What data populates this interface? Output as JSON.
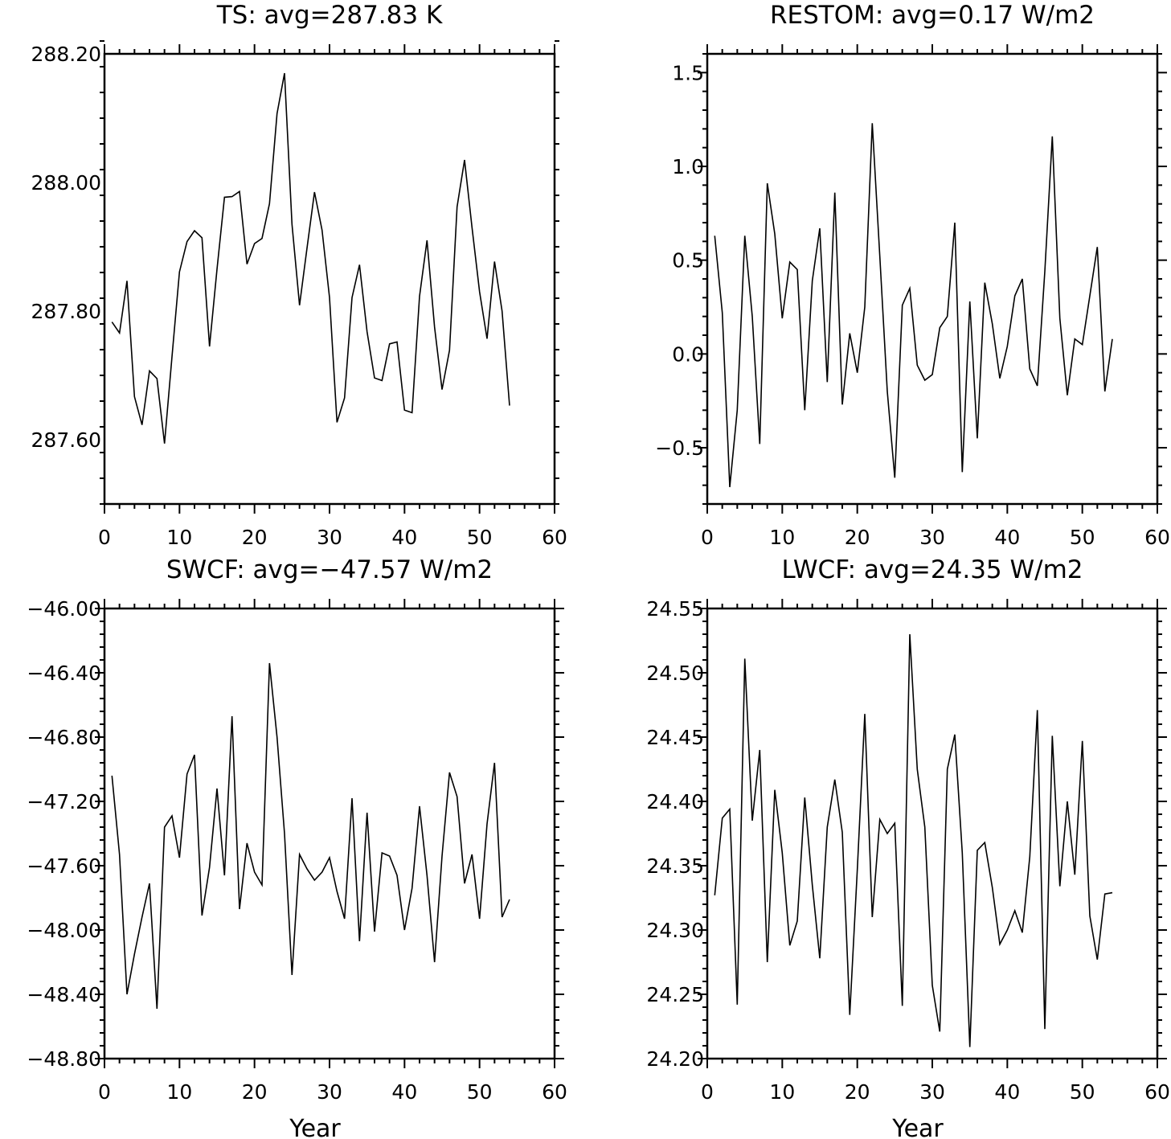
{
  "chart_data": [
    {
      "type": "line",
      "title": "TS: avg=287.83 K",
      "xlabel": "",
      "ylabel": "",
      "xlim": [
        0,
        60
      ],
      "ylim": [
        287.5,
        288.2
      ],
      "xticks": [
        "0",
        "10",
        "20",
        "30",
        "40",
        "50",
        "60"
      ],
      "yticks": [
        {
          "value": 287.6,
          "label": "287.60"
        },
        {
          "value": 287.8,
          "label": "287.80"
        },
        {
          "value": 288.0,
          "label": "288.00"
        },
        {
          "value": 288.2,
          "label": "288.20"
        }
      ],
      "x": [
        1,
        2,
        3,
        4,
        5,
        6,
        7,
        8,
        9,
        10,
        11,
        12,
        13,
        14,
        15,
        16,
        17,
        18,
        19,
        20,
        21,
        22,
        23,
        24,
        25,
        26,
        27,
        28,
        29,
        30,
        31,
        32,
        33,
        34,
        35,
        36,
        37,
        38,
        39,
        40,
        41,
        42,
        43,
        44,
        45,
        46,
        47,
        48,
        49,
        50,
        51,
        52,
        53,
        54
      ],
      "values": [
        287.783,
        287.766,
        287.847,
        287.667,
        287.623,
        287.707,
        287.695,
        287.594,
        287.729,
        287.861,
        287.908,
        287.925,
        287.914,
        287.745,
        287.865,
        287.977,
        287.978,
        287.986,
        287.873,
        287.905,
        287.913,
        287.967,
        288.107,
        288.17,
        287.935,
        287.809,
        287.898,
        287.985,
        287.926,
        287.821,
        287.627,
        287.665,
        287.821,
        287.872,
        287.768,
        287.696,
        287.692,
        287.749,
        287.752,
        287.646,
        287.642,
        287.823,
        287.91,
        287.775,
        287.678,
        287.739,
        287.962,
        288.035,
        287.93,
        287.83,
        287.757,
        287.877,
        287.8,
        287.653
      ]
    },
    {
      "type": "line",
      "title": "RESTOM: avg=0.17 W/m2",
      "xlabel": "",
      "ylabel": "",
      "xlim": [
        0,
        60
      ],
      "ylim": [
        -0.8,
        1.6
      ],
      "xticks": [
        "0",
        "10",
        "20",
        "30",
        "40",
        "50",
        "60"
      ],
      "yticks": [
        {
          "value": -0.5,
          "label": "−0.5"
        },
        {
          "value": 0.0,
          "label": "0.0"
        },
        {
          "value": 0.5,
          "label": "0.5"
        },
        {
          "value": 1.0,
          "label": "1.0"
        },
        {
          "value": 1.5,
          "label": "1.5"
        }
      ],
      "x": [
        1,
        2,
        3,
        4,
        5,
        6,
        7,
        8,
        9,
        10,
        11,
        12,
        13,
        14,
        15,
        16,
        17,
        18,
        19,
        20,
        21,
        22,
        23,
        24,
        25,
        26,
        27,
        28,
        29,
        30,
        31,
        32,
        33,
        34,
        35,
        36,
        37,
        38,
        39,
        40,
        41,
        42,
        43,
        44,
        45,
        46,
        47,
        48,
        49,
        50,
        51,
        52,
        53,
        54
      ],
      "values": [
        0.63,
        0.22,
        -0.71,
        -0.3,
        0.63,
        0.2,
        -0.48,
        0.91,
        0.64,
        0.19,
        0.49,
        0.45,
        -0.3,
        0.39,
        0.67,
        -0.15,
        0.86,
        -0.27,
        0.11,
        -0.1,
        0.25,
        1.23,
        0.52,
        -0.2,
        -0.66,
        0.26,
        0.35,
        -0.06,
        -0.14,
        -0.11,
        0.14,
        0.2,
        0.7,
        -0.63,
        0.28,
        -0.45,
        0.38,
        0.16,
        -0.13,
        0.04,
        0.31,
        0.4,
        -0.08,
        -0.17,
        0.44,
        1.16,
        0.19,
        -0.22,
        0.08,
        0.05,
        0.31,
        0.57,
        -0.2,
        0.08
      ]
    },
    {
      "type": "line",
      "title": "SWCF: avg=−47.57 W/m2",
      "xlabel": "Year",
      "ylabel": "",
      "xlim": [
        0,
        60
      ],
      "ylim": [
        -48.8,
        -46.0
      ],
      "xticks": [
        "0",
        "10",
        "20",
        "30",
        "40",
        "50",
        "60"
      ],
      "yticks": [
        {
          "value": -48.8,
          "label": "−48.80"
        },
        {
          "value": -48.4,
          "label": "−48.40"
        },
        {
          "value": -48.0,
          "label": "−48.00"
        },
        {
          "value": -47.6,
          "label": "−47.60"
        },
        {
          "value": -47.2,
          "label": "−47.20"
        },
        {
          "value": -46.8,
          "label": "−46.80"
        },
        {
          "value": -46.4,
          "label": "−46.40"
        },
        {
          "value": -46.0,
          "label": "−46.00"
        }
      ],
      "x": [
        1,
        2,
        3,
        4,
        5,
        6,
        7,
        8,
        9,
        10,
        11,
        12,
        13,
        14,
        15,
        16,
        17,
        18,
        19,
        20,
        21,
        22,
        23,
        24,
        25,
        26,
        27,
        28,
        29,
        30,
        31,
        32,
        33,
        34,
        35,
        36,
        37,
        38,
        39,
        40,
        41,
        42,
        43,
        44,
        45,
        46,
        47,
        48,
        49,
        50,
        51,
        52,
        53,
        54
      ],
      "values": [
        -47.04,
        -47.53,
        -48.4,
        -48.15,
        -47.92,
        -47.71,
        -48.49,
        -47.36,
        -47.29,
        -47.55,
        -47.03,
        -46.91,
        -47.91,
        -47.61,
        -47.12,
        -47.66,
        -46.67,
        -47.87,
        -47.46,
        -47.64,
        -47.72,
        -46.34,
        -46.8,
        -47.4,
        -48.28,
        -47.53,
        -47.62,
        -47.69,
        -47.64,
        -47.55,
        -47.76,
        -47.93,
        -47.18,
        -48.07,
        -47.27,
        -48.01,
        -47.52,
        -47.54,
        -47.66,
        -48.0,
        -47.74,
        -47.23,
        -47.66,
        -48.2,
        -47.54,
        -47.02,
        -47.17,
        -47.71,
        -47.53,
        -47.93,
        -47.34,
        -46.96,
        -47.92,
        -47.81
      ]
    },
    {
      "type": "line",
      "title": "LWCF: avg=24.35 W/m2",
      "xlabel": "Year",
      "ylabel": "",
      "xlim": [
        0,
        60
      ],
      "ylim": [
        24.2,
        24.55
      ],
      "xticks": [
        "0",
        "10",
        "20",
        "30",
        "40",
        "50",
        "60"
      ],
      "yticks": [
        {
          "value": 24.2,
          "label": "24.20"
        },
        {
          "value": 24.25,
          "label": "24.25"
        },
        {
          "value": 24.3,
          "label": "24.30"
        },
        {
          "value": 24.35,
          "label": "24.35"
        },
        {
          "value": 24.4,
          "label": "24.40"
        },
        {
          "value": 24.45,
          "label": "24.45"
        },
        {
          "value": 24.5,
          "label": "24.50"
        },
        {
          "value": 24.55,
          "label": "24.55"
        }
      ],
      "x": [
        1,
        2,
        3,
        4,
        5,
        6,
        7,
        8,
        9,
        10,
        11,
        12,
        13,
        14,
        15,
        16,
        17,
        18,
        19,
        20,
        21,
        22,
        23,
        24,
        25,
        26,
        27,
        28,
        29,
        30,
        31,
        32,
        33,
        34,
        35,
        36,
        37,
        38,
        39,
        40,
        41,
        42,
        43,
        44,
        45,
        46,
        47,
        48,
        49,
        50,
        51,
        52,
        53,
        54
      ],
      "values": [
        24.327,
        24.387,
        24.394,
        24.242,
        24.511,
        24.385,
        24.44,
        24.275,
        24.409,
        24.36,
        24.288,
        24.307,
        24.403,
        24.335,
        24.278,
        24.38,
        24.417,
        24.376,
        24.234,
        24.347,
        24.468,
        24.31,
        24.386,
        24.375,
        24.383,
        24.241,
        24.53,
        24.425,
        24.38,
        24.257,
        24.221,
        24.425,
        24.452,
        24.36,
        24.209,
        24.362,
        24.368,
        24.333,
        24.289,
        24.3,
        24.315,
        24.298,
        24.357,
        24.471,
        24.223,
        24.451,
        24.334,
        24.4,
        24.343,
        24.447,
        24.311,
        24.277,
        24.328,
        24.329
      ]
    }
  ]
}
